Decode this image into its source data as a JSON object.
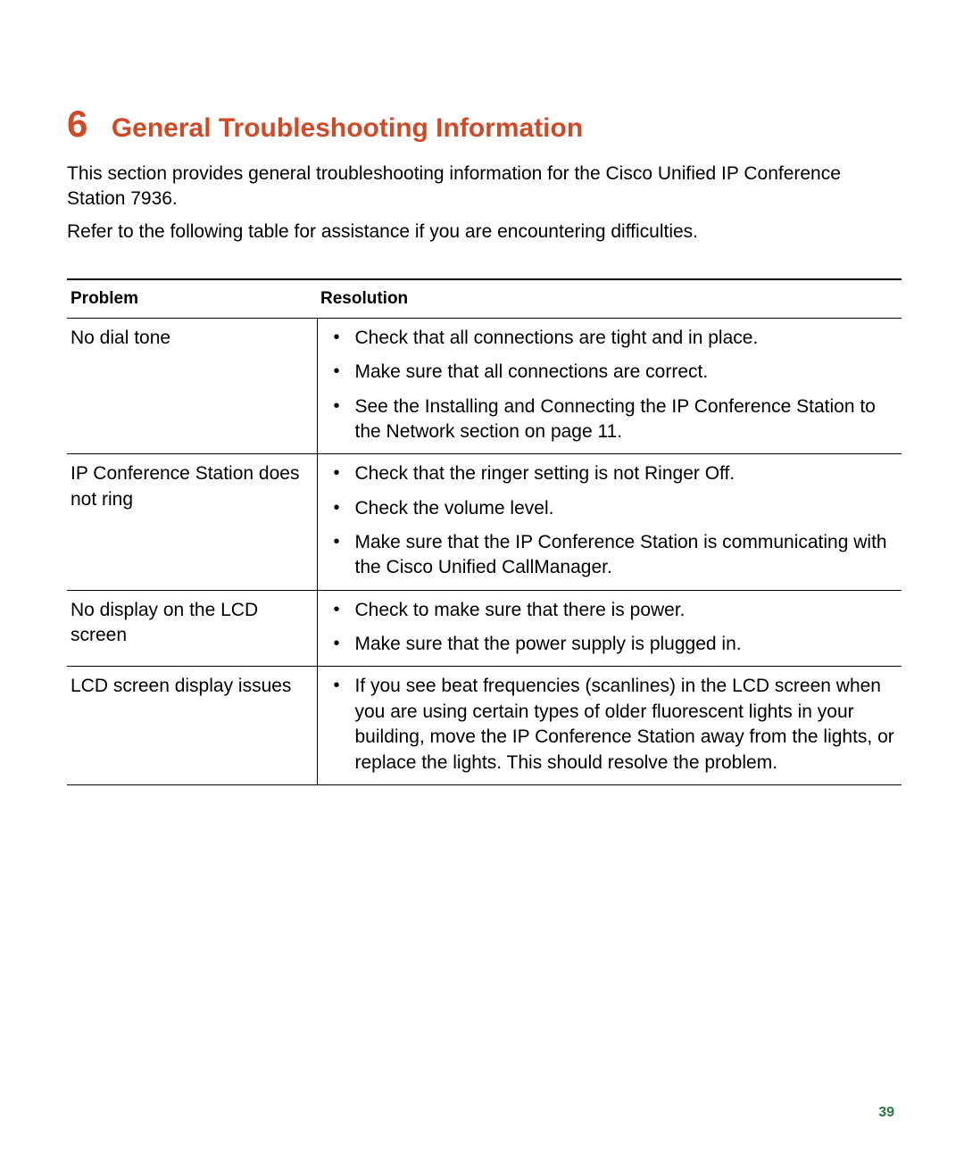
{
  "colors": {
    "heading": "#cf4a26",
    "text": "#000000",
    "page_num": "#2b7a3f",
    "border": "#000000",
    "background": "#ffffff"
  },
  "typography": {
    "chapter_num_fontsize": 42,
    "chapter_title_fontsize": 30,
    "body_fontsize": 21,
    "header_fontsize": 19,
    "page_num_fontsize": 16
  },
  "chapter": {
    "number": "6",
    "title": "General Troubleshooting Information"
  },
  "intro": {
    "p1": "This section provides general troubleshooting information for the Cisco Unified IP Conference Station 7936.",
    "p2": "Refer to the following table for assistance if you are encountering difficulties."
  },
  "table": {
    "headers": {
      "col1": "Problem",
      "col2": "Resolution"
    },
    "rows": [
      {
        "problem": "No dial tone",
        "resolutions": [
          "Check that all connections are tight and in place.",
          "Make sure that all connections are correct.",
          "See the  Installing and Connecting the IP Conference Station to the Network  section on page 11."
        ]
      },
      {
        "problem": "IP Conference Station does not ring",
        "resolutions": [
          "Check that the ringer setting is not  Ringer Off.",
          "Check the volume level.",
          "Make sure that the IP Conference Station is communicating with the Cisco Unified CallManager."
        ]
      },
      {
        "problem": "No display on the LCD screen",
        "resolutions": [
          "Check to make sure that there is power.",
          "Make sure that the power supply is plugged in."
        ]
      },
      {
        "problem": "LCD screen display issues",
        "resolutions": [
          "If you see beat frequencies (scanlines) in the LCD screen when you are using certain types of older fluorescent lights in your building, move the IP Conference Station away from the lights, or replace the lights. This should resolve the problem."
        ]
      }
    ]
  },
  "page_number": "39"
}
